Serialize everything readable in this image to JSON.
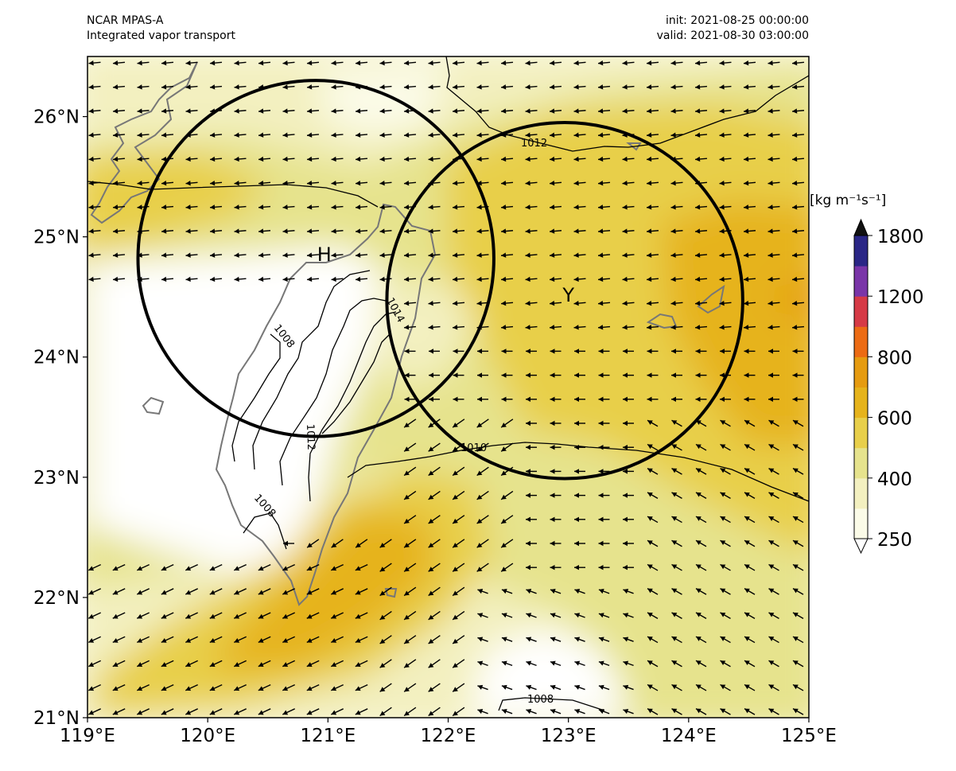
{
  "header": {
    "model": "NCAR MPAS-A",
    "field": "Integrated vapor transport",
    "init": "init: 2021-08-25 00:00:00",
    "valid": "valid: 2021-08-30 03:00:00"
  },
  "axes": {
    "lon_range": [
      119,
      125
    ],
    "lat_range": [
      21,
      26.5
    ],
    "x_ticks": [
      "119°E",
      "120°E",
      "121°E",
      "122°E",
      "123°E",
      "124°E",
      "125°E"
    ],
    "y_ticks": [
      "21°N",
      "22°N",
      "23°N",
      "24°N",
      "25°N",
      "26°N"
    ]
  },
  "colorbar": {
    "unit": "[kg m⁻¹s⁻¹]",
    "tick_labels": [
      "1800",
      "1200",
      "800",
      "600",
      "400",
      "250"
    ],
    "levels": [
      250,
      300,
      400,
      500,
      600,
      700,
      800,
      1000,
      1200,
      1500,
      1800
    ],
    "colors": [
      "#fbfbe8",
      "#f3f0c0",
      "#e6e38d",
      "#e8cf4a",
      "#e6b31b",
      "#e69b10",
      "#ec6b14",
      "#d63a46",
      "#7a35a8",
      "#2a2686"
    ],
    "extend": "both"
  },
  "markers": [
    {
      "label": "H",
      "lon": 120.97,
      "lat": 24.86
    },
    {
      "label": "Y",
      "lon": 123.0,
      "lat": 24.52
    }
  ],
  "circles": [
    {
      "center_lon": 120.9,
      "center_lat": 24.82,
      "radius_deg": 1.48
    },
    {
      "center_lon": 122.97,
      "center_lat": 24.47,
      "radius_deg": 1.48
    }
  ],
  "pressure_contour_labels": [
    "1008",
    "1012",
    "1014",
    "1010",
    "1008",
    "1012",
    "1008"
  ],
  "colors": {
    "coast": "#777777",
    "isobar": "#000000",
    "vector": "#000000"
  }
}
